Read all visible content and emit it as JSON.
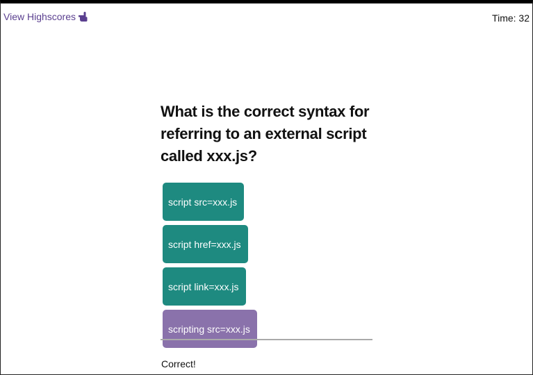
{
  "header": {
    "highscores_label": "View Highscores",
    "highscores_icon": "pointing-hand-icon",
    "timer_text": "Time: 32"
  },
  "quiz": {
    "question": "What is the correct syntax for referring to an external script called xxx.js?",
    "choices": [
      {
        "label": "script src=xxx.js",
        "selected": false
      },
      {
        "label": "script href=xxx.js",
        "selected": false
      },
      {
        "label": "script link=xxx.js",
        "selected": false
      },
      {
        "label": "scripting src=xxx.js",
        "selected": true
      }
    ],
    "feedback": "Correct!"
  },
  "colors": {
    "accent": "#1e8a80",
    "selected": "#8a72ab",
    "link": "#5a3f8f"
  }
}
